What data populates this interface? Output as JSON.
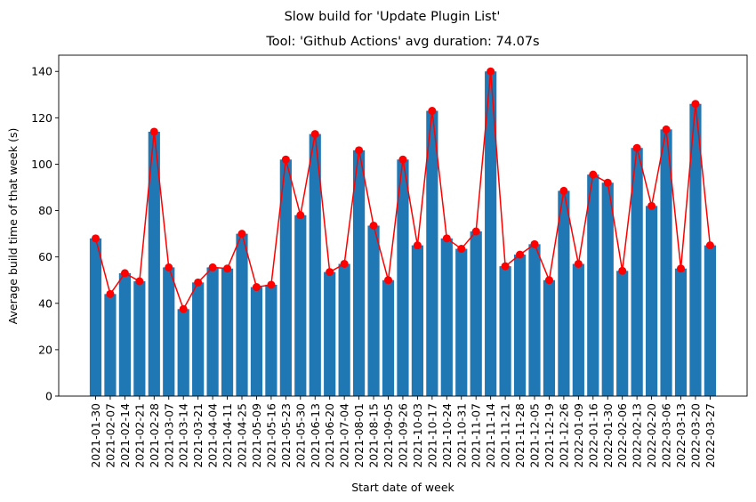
{
  "chart_data": {
    "type": "bar",
    "suptitle": "Slow build for 'Update Plugin List'",
    "title": "Tool: 'Github Actions' avg duration: 74.07s",
    "xlabel": "Start date of week",
    "ylabel": "Average build time of that week (s)",
    "ylim": [
      0,
      147
    ],
    "yticks": [
      0,
      20,
      40,
      60,
      80,
      100,
      120,
      140
    ],
    "grid": false,
    "colors": {
      "bar": "#1f77b4",
      "line": "#ff0000"
    },
    "categories": [
      "2021-01-30",
      "2021-02-07",
      "2021-02-14",
      "2021-02-21",
      "2021-02-28",
      "2021-03-07",
      "2021-03-14",
      "2021-03-21",
      "2021-04-04",
      "2021-04-11",
      "2021-04-25",
      "2021-05-09",
      "2021-05-16",
      "2021-05-23",
      "2021-05-30",
      "2021-06-13",
      "2021-06-20",
      "2021-07-04",
      "2021-08-01",
      "2021-08-15",
      "2021-09-05",
      "2021-09-26",
      "2021-10-03",
      "2021-10-17",
      "2021-10-24",
      "2021-10-31",
      "2021-11-07",
      "2021-11-14",
      "2021-11-21",
      "2021-11-28",
      "2021-12-05",
      "2021-12-19",
      "2021-12-26",
      "2022-01-09",
      "2022-01-16",
      "2022-01-30",
      "2022-02-06",
      "2022-02-13",
      "2022-02-20",
      "2022-03-06",
      "2022-03-13",
      "2022-03-20",
      "2022-03-27"
    ],
    "values": [
      68,
      44,
      53,
      49.5,
      114,
      55.5,
      37.5,
      49,
      55.5,
      55,
      70,
      47,
      48,
      102,
      78,
      113,
      53.5,
      57,
      106,
      73.5,
      50,
      102,
      65,
      123,
      68,
      63.5,
      71,
      140,
      56,
      61,
      65.5,
      50,
      88.5,
      57,
      95.5,
      92,
      54,
      107,
      82,
      115,
      55,
      126,
      65
    ]
  }
}
